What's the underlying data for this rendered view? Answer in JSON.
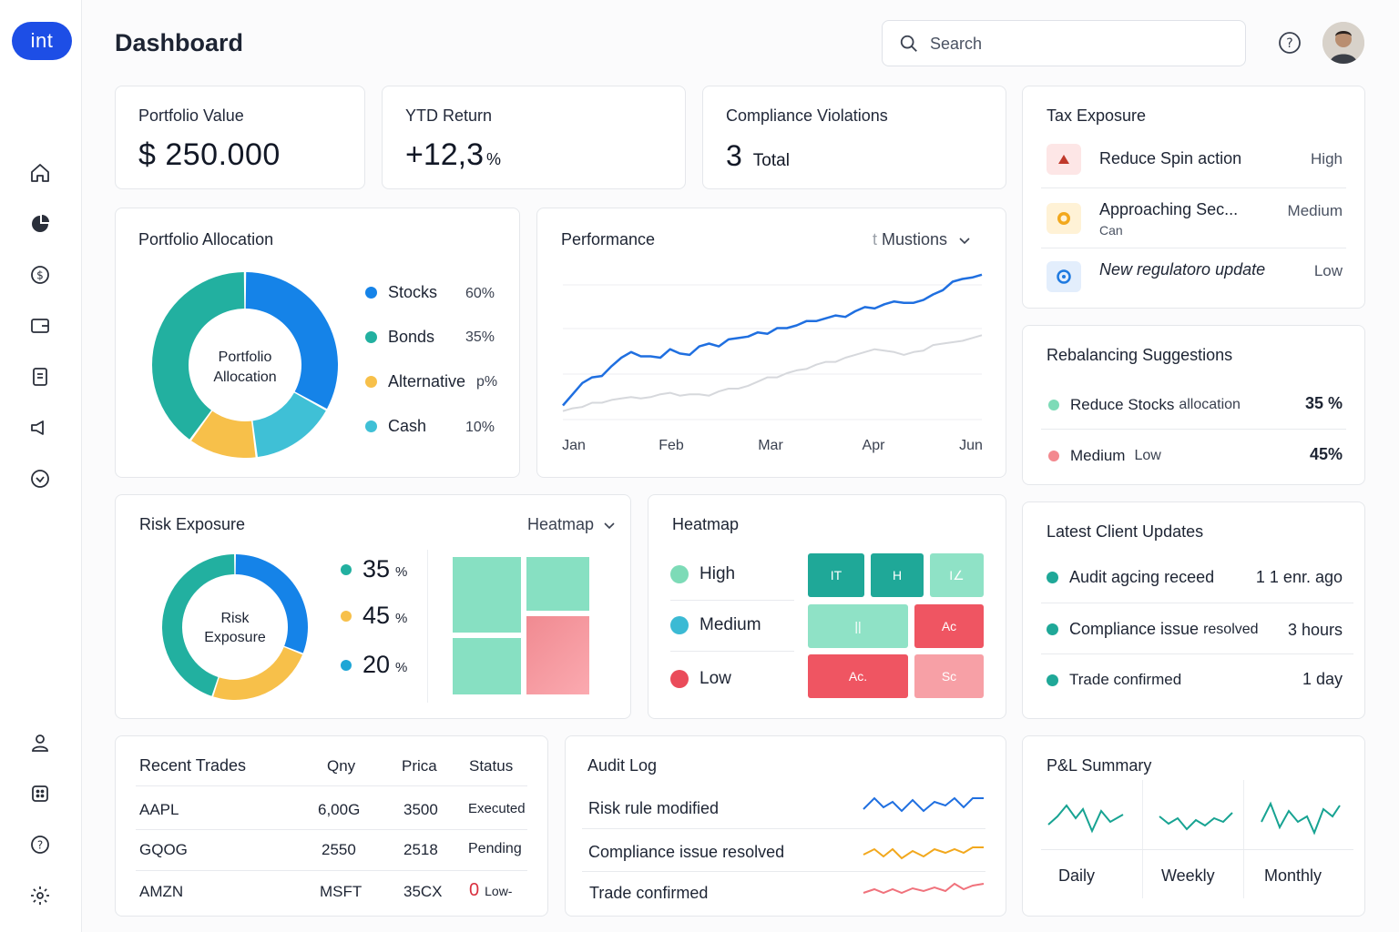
{
  "app": {
    "logo": "int",
    "title": "Dashboard"
  },
  "search": {
    "placeholder": "Search"
  },
  "sidebar": {
    "items": [
      {
        "icon": "home-icon"
      },
      {
        "icon": "pie-chart-icon"
      },
      {
        "icon": "dollar-icon"
      },
      {
        "icon": "wallet-icon"
      },
      {
        "icon": "document-icon"
      },
      {
        "icon": "megaphone-icon"
      },
      {
        "icon": "check-circle-icon"
      }
    ],
    "bottom": [
      {
        "icon": "user-icon"
      },
      {
        "icon": "apps-icon"
      },
      {
        "icon": "help-icon"
      },
      {
        "icon": "settings-icon"
      }
    ]
  },
  "kpis": {
    "portfolio_value": {
      "label": "Portfolio Value",
      "value": "$ 250.000"
    },
    "ytd_return": {
      "label": "YTD Return",
      "value": "+12,3",
      "unit": "%"
    },
    "compliance": {
      "label": "Compliance Violations",
      "value": "3",
      "unit": "Total"
    }
  },
  "tax": {
    "title": "Tax Exposure",
    "items": [
      {
        "label": "Reduce Spin action",
        "sub": "",
        "level": "High",
        "color": "#c0392b"
      },
      {
        "label": "Approaching Sec...",
        "sub": "Can",
        "level": "Medium",
        "color": "#f2a81d"
      },
      {
        "label": "New regulatoro update",
        "sub": "",
        "level": "Low",
        "color": "#1f7ae0"
      }
    ]
  },
  "allocation": {
    "title": "Portfolio Allocation",
    "center": [
      "Portfolio",
      "Allocation"
    ],
    "items": [
      {
        "name": "Stocks",
        "pct": "60%",
        "color": "#1583e8"
      },
      {
        "name": "Bonds",
        "pct": "35%",
        "color": "#22b0a0"
      },
      {
        "name": "Alternative",
        "pct": "p%",
        "color": "#f7c04a"
      },
      {
        "name": "Cash",
        "pct": "10%",
        "color": "#3fc0d6"
      }
    ]
  },
  "performance": {
    "title": "Performance",
    "dropdown": "Mustions",
    "dropdown_prefix": "t"
  },
  "rebalancing": {
    "title": "Rebalancing Suggestions",
    "items": [
      {
        "label": "Reduce Stocks",
        "sub": "allocation",
        "value": "35 %",
        "color": "#7ddbb7"
      },
      {
        "label": "Medium",
        "sub": "Low",
        "value": "45%",
        "color": "#f3898f"
      }
    ]
  },
  "risk": {
    "title": "Risk Exposure",
    "dropdown": "Heatmap",
    "center": [
      "Risk",
      "Exposure"
    ],
    "items": [
      {
        "value": "35",
        "unit": "%",
        "color": "#22b0a0"
      },
      {
        "value": "45",
        "unit": "%",
        "color": "#f7c04a"
      },
      {
        "value": "20",
        "unit": "%",
        "color": "#1fa6d6"
      }
    ]
  },
  "heatmap": {
    "title": "Heatmap",
    "legend": [
      {
        "label": "High",
        "color": "#7ddbb7"
      },
      {
        "label": "Medium",
        "color": "#3bbad4"
      },
      {
        "label": "Low",
        "color": "#ea4b5a"
      }
    ],
    "cells": [
      "IT",
      "H",
      "I∠",
      "||",
      "Ac",
      "Ac.",
      "Sc"
    ]
  },
  "updates": {
    "title": "Latest Client Updates",
    "items": [
      {
        "label": "Audit agcing receed",
        "time": "1 1 enr. ago"
      },
      {
        "label": "Compliance issue",
        "label2": "resolved",
        "time": "3 hours"
      },
      {
        "label": "Trade confirmed",
        "time": "1 day"
      }
    ]
  },
  "trades": {
    "title": "Recent Trades",
    "columns": [
      "Qny",
      "Prica",
      "Status"
    ],
    "rows": [
      {
        "ticker": "AAPL",
        "qty": "6,00G",
        "price": "3500",
        "status": "Executed"
      },
      {
        "ticker": "GQOG",
        "qty": "2550",
        "price": "2518",
        "status": "Pending"
      },
      {
        "ticker": "AMZN",
        "qty": "MSFT",
        "price": "35CX",
        "status": "Low-",
        "flag": "0"
      }
    ]
  },
  "audit": {
    "title": "Audit Log",
    "items": [
      {
        "label": "Risk rule modified",
        "color": "#1f6fe0"
      },
      {
        "label": "Compliance issue resolved",
        "color": "#f2a81d"
      },
      {
        "label": "Trade confirmed",
        "color": "#f0727c"
      }
    ]
  },
  "pnl": {
    "title": "P&L Summary",
    "items": [
      {
        "label": "Daily"
      },
      {
        "label": "Weekly"
      },
      {
        "label": "Monthly"
      }
    ],
    "color": "#17a392"
  },
  "chart_data": {
    "type": "line",
    "title": "Performance",
    "categories": [
      "Jan",
      "Feb",
      "Mar",
      "Apr",
      "Jun"
    ],
    "x": [
      0,
      1,
      2,
      3,
      4,
      5,
      6,
      7,
      8,
      9,
      10,
      11,
      12,
      13,
      14,
      15,
      16,
      17,
      18,
      19,
      20,
      21,
      22,
      23,
      24,
      25,
      26,
      27,
      28,
      29,
      30,
      31,
      32,
      33,
      34,
      35,
      36,
      37,
      38,
      39,
      40,
      41,
      42,
      43
    ],
    "series": [
      {
        "color": "#1f6fe0",
        "values": [
          10,
          18,
          26,
          30,
          31,
          38,
          44,
          48,
          45,
          45,
          44,
          50,
          47,
          46,
          52,
          54,
          52,
          57,
          58,
          59,
          62,
          61,
          65,
          65,
          67,
          70,
          70,
          72,
          74,
          73,
          77,
          80,
          79,
          82,
          84,
          83,
          83,
          85,
          89,
          92,
          98,
          100,
          101,
          103
        ]
      },
      {
        "color": "#d6d8dc",
        "values": [
          6,
          8,
          9,
          12,
          12,
          14,
          15,
          16,
          15,
          16,
          18,
          19,
          17,
          18,
          18,
          17,
          20,
          22,
          22,
          24,
          27,
          30,
          30,
          33,
          35,
          36,
          39,
          41,
          41,
          44,
          46,
          48,
          50,
          49,
          48,
          46,
          48,
          49,
          53,
          54,
          55,
          56,
          58,
          60
        ]
      }
    ],
    "ylim": [
      0,
      110
    ],
    "grid": true
  }
}
